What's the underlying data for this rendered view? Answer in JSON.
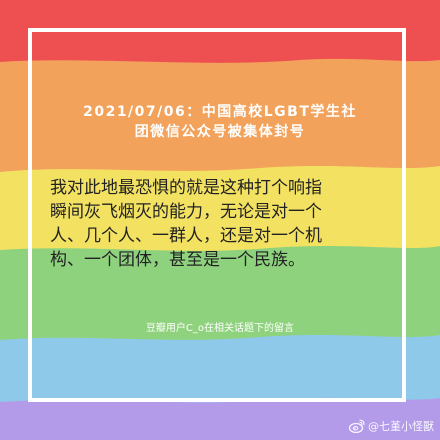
{
  "colors": {
    "red": "#ee5052",
    "orange": "#f2a25b",
    "yellow": "#f3e262",
    "green": "#8fd27e",
    "blue": "#8fc9ea",
    "purple": "#b39bea",
    "frame": "#ffffff",
    "headline_text": "#ffffff",
    "quote_text": "#222222"
  },
  "headline": {
    "line1": "2021/07/06：中国高校LGBT学生社",
    "line2": "团微信公众号被集体封号"
  },
  "quote": {
    "line1": "我对此地最恐惧的就是这种打个响指",
    "line2": "瞬间灰飞烟灭的能力，无论是对一个",
    "line3": "人、几个人、一群人，还是对一个机",
    "line4": "构、一个团体，甚至是一个民族。"
  },
  "attribution": "豆瓣用户C_o在相关话题下的留言",
  "watermark": {
    "icon": "weibo-logo-icon",
    "text": "@七堇小怪獸"
  }
}
